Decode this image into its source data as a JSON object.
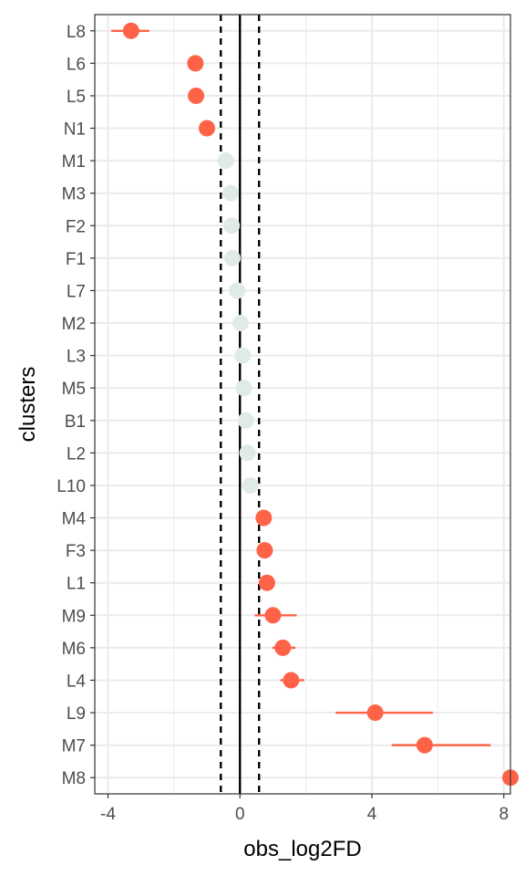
{
  "chart_data": {
    "type": "scatter",
    "title": "",
    "xlabel": "obs_log2FD",
    "ylabel": "clusters",
    "xlim": [
      -4.4,
      8.2
    ],
    "x_ticks": [
      -4,
      0,
      4,
      8
    ],
    "x_tick_labels": [
      "-4",
      "0",
      "4",
      "8"
    ],
    "grid": true,
    "legend": "none",
    "reference_lines": [
      {
        "x": 0,
        "style": "solid"
      },
      {
        "x": -0.58,
        "style": "dashed"
      },
      {
        "x": 0.58,
        "style": "dashed"
      }
    ],
    "colors": {
      "significant": "#ff6347",
      "not_significant": "#e0ebe6",
      "reference_line": "#000000",
      "grid": "#ebebeb"
    },
    "points": [
      {
        "cluster": "L8",
        "x": -3.3,
        "lo": -3.9,
        "hi": -2.75,
        "significant": true
      },
      {
        "cluster": "L6",
        "x": -1.35,
        "lo": -1.35,
        "hi": -1.35,
        "significant": true
      },
      {
        "cluster": "L5",
        "x": -1.33,
        "lo": -1.33,
        "hi": -1.33,
        "significant": true
      },
      {
        "cluster": "N1",
        "x": -1.0,
        "lo": -1.0,
        "hi": -1.0,
        "significant": true
      },
      {
        "cluster": "M1",
        "x": -0.43,
        "lo": -0.43,
        "hi": -0.43,
        "significant": false
      },
      {
        "cluster": "M3",
        "x": -0.28,
        "lo": -0.28,
        "hi": -0.28,
        "significant": false
      },
      {
        "cluster": "F2",
        "x": -0.25,
        "lo": -0.25,
        "hi": -0.25,
        "significant": false
      },
      {
        "cluster": "F1",
        "x": -0.23,
        "lo": -0.23,
        "hi": -0.23,
        "significant": false
      },
      {
        "cluster": "L7",
        "x": -0.08,
        "lo": -0.08,
        "hi": -0.08,
        "significant": false
      },
      {
        "cluster": "M2",
        "x": 0.02,
        "lo": 0.02,
        "hi": 0.02,
        "significant": false
      },
      {
        "cluster": "L3",
        "x": 0.08,
        "lo": 0.08,
        "hi": 0.08,
        "significant": false
      },
      {
        "cluster": "M5",
        "x": 0.12,
        "lo": 0.12,
        "hi": 0.12,
        "significant": false
      },
      {
        "cluster": "B1",
        "x": 0.18,
        "lo": 0.18,
        "hi": 0.18,
        "significant": false
      },
      {
        "cluster": "L2",
        "x": 0.23,
        "lo": 0.23,
        "hi": 0.23,
        "significant": false
      },
      {
        "cluster": "L10",
        "x": 0.32,
        "lo": 0.32,
        "hi": 0.32,
        "significant": false
      },
      {
        "cluster": "M4",
        "x": 0.72,
        "lo": 0.72,
        "hi": 0.72,
        "significant": true
      },
      {
        "cluster": "F3",
        "x": 0.75,
        "lo": 0.75,
        "hi": 0.75,
        "significant": true
      },
      {
        "cluster": "L1",
        "x": 0.82,
        "lo": 0.82,
        "hi": 0.82,
        "significant": true
      },
      {
        "cluster": "M9",
        "x": 1.0,
        "lo": 0.45,
        "hi": 1.72,
        "significant": true
      },
      {
        "cluster": "M6",
        "x": 1.3,
        "lo": 0.98,
        "hi": 1.68,
        "significant": true
      },
      {
        "cluster": "L4",
        "x": 1.55,
        "lo": 1.22,
        "hi": 1.95,
        "significant": true
      },
      {
        "cluster": "L9",
        "x": 4.1,
        "lo": 2.9,
        "hi": 5.85,
        "significant": true
      },
      {
        "cluster": "M7",
        "x": 5.6,
        "lo": 4.6,
        "hi": 7.6,
        "significant": true
      },
      {
        "cluster": "M8",
        "x": 8.2,
        "lo": 8.2,
        "hi": 8.2,
        "significant": true
      }
    ]
  }
}
